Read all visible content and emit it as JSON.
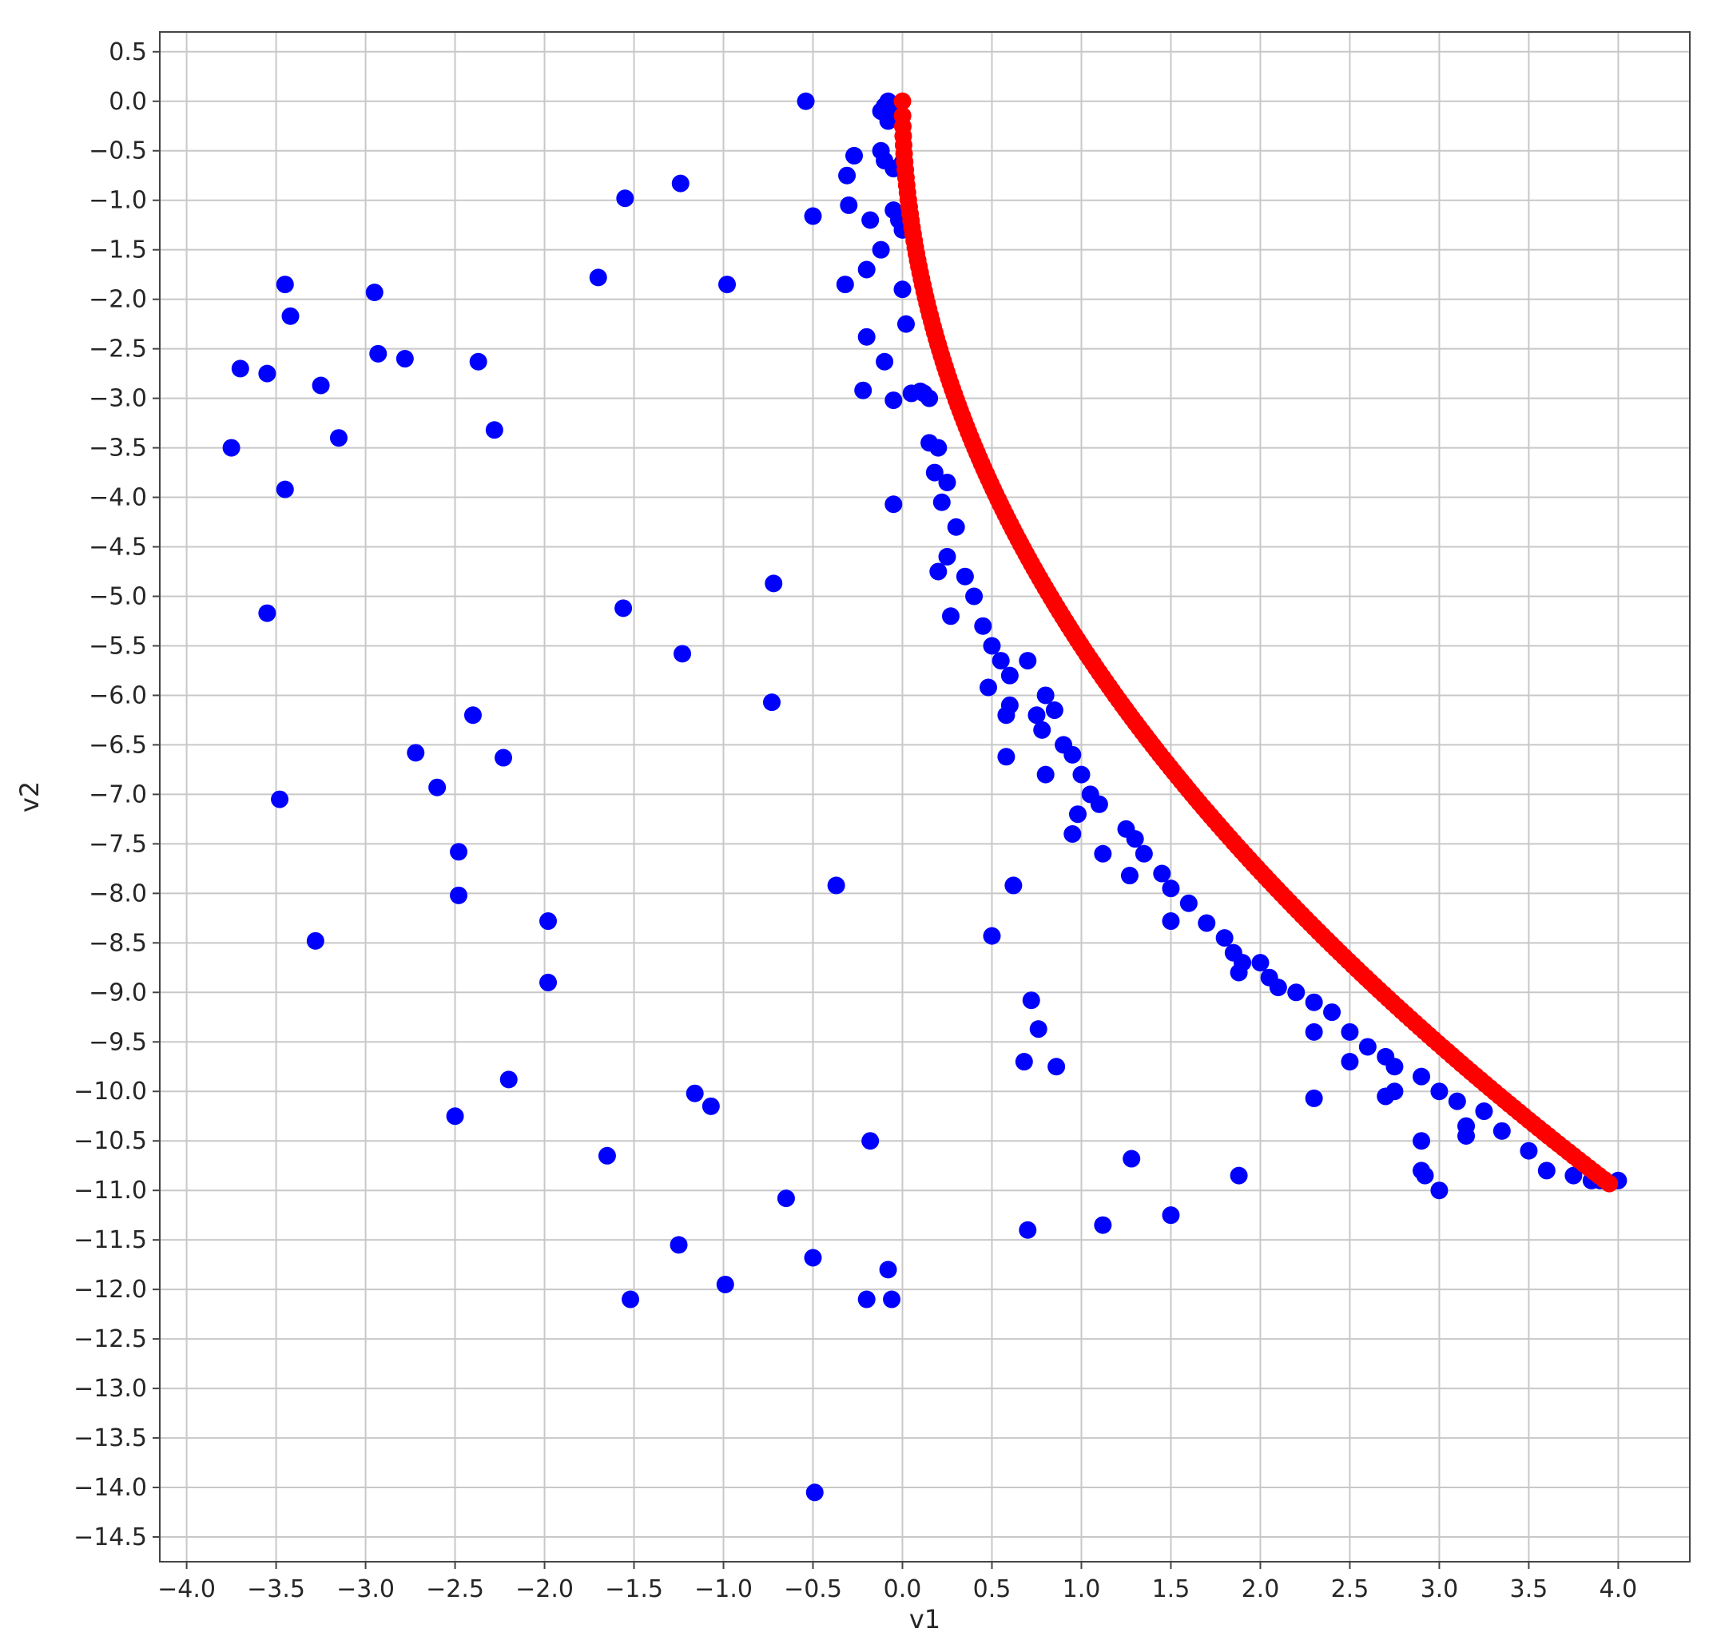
{
  "chart_data": {
    "type": "scatter",
    "title": "",
    "xlabel": "v1",
    "ylabel": "v2",
    "xlim": [
      -4.15,
      4.4
    ],
    "ylim": [
      -14.75,
      0.7
    ],
    "grid": true,
    "x_ticks": [
      -4.0,
      -3.5,
      -3.0,
      -2.5,
      -2.0,
      -1.5,
      -1.0,
      -0.5,
      0.0,
      0.5,
      1.0,
      1.5,
      2.0,
      2.5,
      3.0,
      3.5,
      4.0
    ],
    "x_tick_labels": [
      "−4.0",
      "−3.5",
      "−3.0",
      "−2.5",
      "−2.0",
      "−1.5",
      "−1.0",
      "−0.5",
      "0.0",
      "0.5",
      "1.0",
      "1.5",
      "2.0",
      "2.5",
      "3.0",
      "3.5",
      "4.0"
    ],
    "y_ticks": [
      0.5,
      0.0,
      -0.5,
      -1.0,
      -1.5,
      -2.0,
      -2.5,
      -3.0,
      -3.5,
      -4.0,
      -4.5,
      -5.0,
      -5.5,
      -6.0,
      -6.5,
      -7.0,
      -7.5,
      -8.0,
      -8.5,
      -9.0,
      -9.5,
      -10.0,
      -10.5,
      -11.0,
      -11.5,
      -12.0,
      -12.5,
      -13.0,
      -13.5,
      -14.0,
      -14.5
    ],
    "y_tick_labels": [
      "0.5",
      "0.0",
      "−0.5",
      "−1.0",
      "−1.5",
      "−2.0",
      "−2.5",
      "−3.0",
      "−3.5",
      "−4.0",
      "−4.5",
      "−5.0",
      "−5.5",
      "−6.0",
      "−6.5",
      "−7.0",
      "−7.5",
      "−8.0",
      "−8.5",
      "−9.0",
      "−9.5",
      "−10.0",
      "−10.5",
      "−11.0",
      "−11.5",
      "−12.0",
      "−12.5",
      "−13.0",
      "−13.5",
      "−14.0",
      "−14.5"
    ],
    "series": [
      {
        "color": "#0000ff",
        "points": [
          [
            -3.45,
            -1.85
          ],
          [
            -3.42,
            -2.17
          ],
          [
            -3.7,
            -2.7
          ],
          [
            -3.55,
            -2.75
          ],
          [
            -3.75,
            -3.5
          ],
          [
            -3.45,
            -3.92
          ],
          [
            -3.55,
            -5.17
          ],
          [
            -3.48,
            -7.05
          ],
          [
            -3.28,
            -8.48
          ],
          [
            -3.25,
            -2.87
          ],
          [
            -3.15,
            -3.4
          ],
          [
            -2.95,
            -1.93
          ],
          [
            -2.93,
            -2.55
          ],
          [
            -2.78,
            -2.6
          ],
          [
            -2.72,
            -6.58
          ],
          [
            -2.6,
            -6.93
          ],
          [
            -2.48,
            -7.58
          ],
          [
            -2.48,
            -8.02
          ],
          [
            -2.5,
            -10.25
          ],
          [
            -2.4,
            -6.2
          ],
          [
            -2.37,
            -2.63
          ],
          [
            -2.28,
            -3.32
          ],
          [
            -2.23,
            -6.63
          ],
          [
            -2.2,
            -9.88
          ],
          [
            -1.98,
            -8.28
          ],
          [
            -1.98,
            -8.9
          ],
          [
            -1.7,
            -1.78
          ],
          [
            -1.65,
            -10.65
          ],
          [
            -1.55,
            -0.98
          ],
          [
            -1.56,
            -5.12
          ],
          [
            -1.52,
            -12.1
          ],
          [
            -1.24,
            -0.83
          ],
          [
            -1.23,
            -5.58
          ],
          [
            -1.25,
            -11.55
          ],
          [
            -1.16,
            -10.02
          ],
          [
            -1.07,
            -10.15
          ],
          [
            -0.98,
            -1.85
          ],
          [
            -0.99,
            -11.95
          ],
          [
            -0.72,
            -4.87
          ],
          [
            -0.73,
            -6.07
          ],
          [
            -0.65,
            -11.08
          ],
          [
            -0.54,
            0.0
          ],
          [
            -0.5,
            -1.16
          ],
          [
            -0.5,
            -11.68
          ],
          [
            -0.49,
            -14.05
          ],
          [
            -0.37,
            -7.92
          ],
          [
            -0.31,
            -0.75
          ],
          [
            -0.3,
            -1.05
          ],
          [
            -0.32,
            -1.85
          ],
          [
            -0.27,
            -0.55
          ],
          [
            -0.22,
            -2.92
          ],
          [
            -0.2,
            -2.38
          ],
          [
            -0.2,
            -1.7
          ],
          [
            -0.18,
            -1.2
          ],
          [
            -0.18,
            -10.5
          ],
          [
            -0.2,
            -12.1
          ],
          [
            -0.12,
            -1.5
          ],
          [
            -0.1,
            -2.63
          ],
          [
            -0.08,
            -11.8
          ],
          [
            -0.06,
            -12.1
          ],
          [
            -0.05,
            -3.02
          ],
          [
            -0.05,
            -4.07
          ],
          [
            -0.12,
            -0.5
          ],
          [
            -0.1,
            -0.6
          ],
          [
            -0.1,
            -0.05
          ],
          [
            -0.08,
            -0.2
          ],
          [
            -0.12,
            -0.1
          ],
          [
            -0.08,
            0.0
          ],
          [
            -0.05,
            -0.12
          ],
          [
            -0.05,
            -0.68
          ],
          [
            -0.05,
            -1.1
          ],
          [
            -0.02,
            -1.2
          ],
          [
            0.0,
            -0.62
          ],
          [
            0.0,
            -1.3
          ],
          [
            0.0,
            -1.9
          ],
          [
            0.02,
            -2.25
          ],
          [
            0.05,
            -2.95
          ],
          [
            0.1,
            -2.93
          ],
          [
            0.12,
            -2.95
          ],
          [
            0.15,
            -3.0
          ],
          [
            0.15,
            -3.45
          ],
          [
            0.2,
            -3.5
          ],
          [
            0.18,
            -3.75
          ],
          [
            0.22,
            -4.05
          ],
          [
            0.25,
            -3.85
          ],
          [
            0.3,
            -4.3
          ],
          [
            0.2,
            -4.75
          ],
          [
            0.25,
            -4.6
          ],
          [
            0.35,
            -4.8
          ],
          [
            0.27,
            -5.2
          ],
          [
            0.45,
            -5.3
          ],
          [
            0.4,
            -5.0
          ],
          [
            0.5,
            -5.5
          ],
          [
            0.55,
            -5.65
          ],
          [
            0.6,
            -5.8
          ],
          [
            0.48,
            -5.92
          ],
          [
            0.58,
            -6.2
          ],
          [
            0.6,
            -6.1
          ],
          [
            0.7,
            -5.65
          ],
          [
            0.75,
            -6.2
          ],
          [
            0.8,
            -6.0
          ],
          [
            0.78,
            -6.35
          ],
          [
            0.85,
            -6.15
          ],
          [
            0.9,
            -6.5
          ],
          [
            0.95,
            -6.6
          ],
          [
            0.58,
            -6.62
          ],
          [
            0.8,
            -6.8
          ],
          [
            1.0,
            -6.8
          ],
          [
            1.05,
            -7.0
          ],
          [
            0.98,
            -7.2
          ],
          [
            0.95,
            -7.4
          ],
          [
            1.1,
            -7.1
          ],
          [
            1.12,
            -7.6
          ],
          [
            1.25,
            -7.35
          ],
          [
            1.3,
            -7.45
          ],
          [
            1.35,
            -7.6
          ],
          [
            1.27,
            -7.82
          ],
          [
            1.45,
            -7.8
          ],
          [
            1.5,
            -7.95
          ],
          [
            1.5,
            -8.28
          ],
          [
            1.6,
            -8.1
          ],
          [
            1.7,
            -8.3
          ],
          [
            1.8,
            -8.45
          ],
          [
            1.85,
            -8.6
          ],
          [
            1.9,
            -8.7
          ],
          [
            1.88,
            -8.8
          ],
          [
            2.0,
            -8.7
          ],
          [
            2.05,
            -8.85
          ],
          [
            2.1,
            -8.95
          ],
          [
            2.2,
            -9.0
          ],
          [
            2.3,
            -9.1
          ],
          [
            2.4,
            -9.2
          ],
          [
            2.3,
            -9.4
          ],
          [
            2.5,
            -9.4
          ],
          [
            2.5,
            -9.7
          ],
          [
            2.6,
            -9.55
          ],
          [
            2.7,
            -9.65
          ],
          [
            2.75,
            -9.75
          ],
          [
            2.7,
            -10.05
          ],
          [
            2.75,
            -10.0
          ],
          [
            2.3,
            -10.07
          ],
          [
            2.9,
            -9.85
          ],
          [
            3.0,
            -10.0
          ],
          [
            3.1,
            -10.1
          ],
          [
            3.15,
            -10.35
          ],
          [
            3.15,
            -10.45
          ],
          [
            3.25,
            -10.2
          ],
          [
            3.35,
            -10.4
          ],
          [
            3.5,
            -10.6
          ],
          [
            3.6,
            -10.8
          ],
          [
            3.75,
            -10.85
          ],
          [
            3.85,
            -10.9
          ],
          [
            3.9,
            -10.9
          ],
          [
            4.0,
            -10.9
          ],
          [
            2.9,
            -10.5
          ],
          [
            2.92,
            -10.85
          ],
          [
            2.9,
            -10.8
          ],
          [
            3.0,
            -11.0
          ],
          [
            1.88,
            -10.85
          ],
          [
            1.28,
            -10.68
          ],
          [
            1.5,
            -11.25
          ],
          [
            1.12,
            -11.35
          ],
          [
            0.7,
            -11.4
          ],
          [
            0.68,
            -9.7
          ],
          [
            0.72,
            -9.08
          ],
          [
            0.76,
            -9.37
          ],
          [
            0.86,
            -9.75
          ],
          [
            0.5,
            -8.43
          ],
          [
            0.62,
            -7.92
          ]
        ]
      },
      {
        "color": "#ff0000",
        "curve": {
          "formula": "v2 = -11 * sqrt(v1 / 4)",
          "v1_range": [
            0.0,
            3.95
          ]
        }
      }
    ]
  }
}
